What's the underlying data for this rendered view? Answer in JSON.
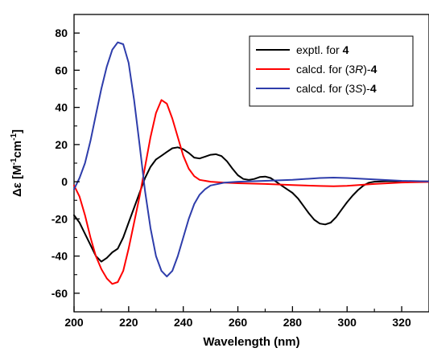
{
  "chart_data": {
    "type": "line",
    "xlabel": "Wavelength (nm)",
    "ylabel": {
      "prefix": "Δε [M",
      "sup1": "-1",
      "mid": "cm",
      "sup2": "-1",
      "suffix": "]"
    },
    "xlim": [
      200,
      330
    ],
    "ylim": [
      -70,
      90
    ],
    "xticks": [
      200,
      220,
      240,
      260,
      280,
      300,
      320
    ],
    "yticks": [
      -60,
      -40,
      -20,
      0,
      20,
      40,
      60,
      80
    ],
    "grid": false,
    "legend_position": "top-right",
    "series": [
      {
        "label": {
          "prefix": "exptl. for ",
          "compound": "4"
        },
        "color": "#000000",
        "points": [
          [
            200,
            -18
          ],
          [
            202,
            -22
          ],
          [
            204,
            -28
          ],
          [
            206,
            -34
          ],
          [
            208,
            -40
          ],
          [
            210,
            -43
          ],
          [
            212,
            -41
          ],
          [
            214,
            -38
          ],
          [
            216,
            -36
          ],
          [
            218,
            -30
          ],
          [
            220,
            -22
          ],
          [
            222,
            -14
          ],
          [
            224,
            -6
          ],
          [
            226,
            2
          ],
          [
            228,
            8
          ],
          [
            230,
            12
          ],
          [
            232,
            14
          ],
          [
            234,
            16
          ],
          [
            236,
            18
          ],
          [
            238,
            18.5
          ],
          [
            240,
            17.5
          ],
          [
            242,
            15.5
          ],
          [
            244,
            13
          ],
          [
            246,
            12.5
          ],
          [
            248,
            13.5
          ],
          [
            250,
            14.5
          ],
          [
            252,
            14.8
          ],
          [
            254,
            13.8
          ],
          [
            256,
            11
          ],
          [
            258,
            7
          ],
          [
            260,
            3.5
          ],
          [
            262,
            1.5
          ],
          [
            264,
            1
          ],
          [
            266,
            1.5
          ],
          [
            268,
            2.5
          ],
          [
            270,
            2.8
          ],
          [
            272,
            2
          ],
          [
            274,
            0
          ],
          [
            276,
            -2
          ],
          [
            278,
            -4
          ],
          [
            280,
            -6
          ],
          [
            282,
            -9
          ],
          [
            284,
            -13
          ],
          [
            286,
            -17
          ],
          [
            288,
            -20.5
          ],
          [
            290,
            -22.5
          ],
          [
            292,
            -23
          ],
          [
            294,
            -22
          ],
          [
            296,
            -19
          ],
          [
            298,
            -15
          ],
          [
            300,
            -11
          ],
          [
            302,
            -7.5
          ],
          [
            304,
            -4.5
          ],
          [
            306,
            -2
          ],
          [
            308,
            -0.5
          ],
          [
            310,
            0
          ],
          [
            315,
            0.3
          ],
          [
            320,
            0.2
          ],
          [
            325,
            0.2
          ],
          [
            330,
            0.2
          ]
        ]
      },
      {
        "label": {
          "prefix": "calcd. for (3",
          "italic": "R",
          "suffix": ")-",
          "compound": "4"
        },
        "color": "#ff0000",
        "points": [
          [
            200,
            -2
          ],
          [
            202,
            -8
          ],
          [
            204,
            -18
          ],
          [
            206,
            -30
          ],
          [
            208,
            -40
          ],
          [
            210,
            -47
          ],
          [
            212,
            -52
          ],
          [
            214,
            -55
          ],
          [
            216,
            -54
          ],
          [
            218,
            -48
          ],
          [
            220,
            -36
          ],
          [
            222,
            -22
          ],
          [
            224,
            -8
          ],
          [
            226,
            8
          ],
          [
            228,
            24
          ],
          [
            230,
            37
          ],
          [
            232,
            44
          ],
          [
            234,
            42
          ],
          [
            236,
            34
          ],
          [
            238,
            24
          ],
          [
            240,
            14
          ],
          [
            242,
            7
          ],
          [
            244,
            3
          ],
          [
            246,
            1
          ],
          [
            250,
            0
          ],
          [
            255,
            -0.5
          ],
          [
            260,
            -0.8
          ],
          [
            270,
            -1.2
          ],
          [
            280,
            -1.8
          ],
          [
            290,
            -2.3
          ],
          [
            295,
            -2.4
          ],
          [
            300,
            -2.2
          ],
          [
            310,
            -1.2
          ],
          [
            320,
            -0.4
          ],
          [
            330,
            -0.1
          ]
        ]
      },
      {
        "label": {
          "prefix": "calcd. for (3",
          "italic": "S",
          "suffix": ")-",
          "compound": "4"
        },
        "color": "#2e3dab",
        "points": [
          [
            200,
            -4
          ],
          [
            202,
            2
          ],
          [
            204,
            10
          ],
          [
            206,
            22
          ],
          [
            208,
            36
          ],
          [
            210,
            50
          ],
          [
            212,
            62
          ],
          [
            214,
            71
          ],
          [
            216,
            75
          ],
          [
            218,
            74
          ],
          [
            220,
            64
          ],
          [
            222,
            44
          ],
          [
            224,
            20
          ],
          [
            226,
            -5
          ],
          [
            228,
            -25
          ],
          [
            230,
            -40
          ],
          [
            232,
            -48
          ],
          [
            234,
            -51
          ],
          [
            236,
            -48
          ],
          [
            238,
            -40
          ],
          [
            240,
            -30
          ],
          [
            242,
            -20
          ],
          [
            244,
            -12
          ],
          [
            246,
            -7
          ],
          [
            248,
            -4
          ],
          [
            250,
            -2
          ],
          [
            255,
            -0.5
          ],
          [
            260,
            0
          ],
          [
            270,
            0.5
          ],
          [
            280,
            1
          ],
          [
            290,
            2
          ],
          [
            295,
            2.2
          ],
          [
            300,
            2
          ],
          [
            310,
            1.2
          ],
          [
            320,
            0.5
          ],
          [
            330,
            0.2
          ]
        ]
      }
    ]
  }
}
